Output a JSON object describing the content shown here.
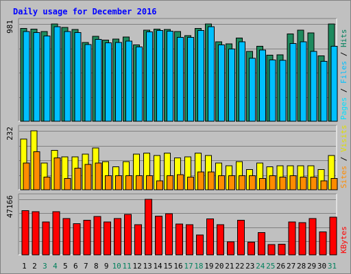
{
  "chart_data": {
    "type": "bar",
    "title": "Daily usage for December 2016",
    "categories": [
      "1",
      "2",
      "3",
      "4",
      "5",
      "6",
      "7",
      "8",
      "9",
      "10",
      "11",
      "12",
      "13",
      "14",
      "15",
      "16",
      "17",
      "18",
      "19",
      "20",
      "21",
      "22",
      "23",
      "24",
      "25",
      "26",
      "27",
      "28",
      "29",
      "30",
      "31"
    ],
    "weekend_days": [
      "3",
      "4",
      "10",
      "11",
      "17",
      "18",
      "24",
      "25",
      "31"
    ],
    "panels": [
      {
        "id": "hits-files-pages",
        "max_label": "981",
        "ymax": 981,
        "series": [
          {
            "name": "Hits",
            "color": "#1e8a5e",
            "values": [
              935,
              930,
              905,
              981,
              945,
              925,
              795,
              855,
              820,
              830,
              850,
              770,
              920,
              930,
              925,
              905,
              865,
              935,
              981,
              800,
              780,
              840,
              705,
              755,
              665,
              670,
              880,
              920,
              890,
              660,
              981
            ]
          },
          {
            "name": "Files",
            "color": "#00c0ff",
            "values": [
              905,
              895,
              860,
              955,
              905,
              895,
              775,
              825,
              790,
              795,
              810,
              750,
              900,
              915,
              910,
              845,
              845,
              915,
              955,
              770,
              730,
              800,
              635,
              720,
              620,
              615,
              785,
              800,
              705,
              605,
              755
            ]
          },
          {
            "name": "Pages",
            "color": "#00e0ff",
            "values": [
              0,
              0,
              0,
              0,
              0,
              0,
              0,
              0,
              0,
              0,
              0,
              0,
              0,
              0,
              0,
              0,
              0,
              0,
              0,
              0,
              0,
              0,
              0,
              0,
              0,
              0,
              0,
              0,
              0,
              0,
              0
            ]
          }
        ]
      },
      {
        "id": "visits-sites",
        "max_label": "232",
        "ymax": 232,
        "series": [
          {
            "name": "Visits",
            "color": "#ffff00",
            "values": [
              200,
              232,
              105,
              155,
              130,
              130,
              140,
              165,
              110,
              90,
              110,
              140,
              145,
              135,
              145,
              125,
              130,
              145,
              135,
              105,
              95,
              110,
              80,
              105,
              90,
              95,
              95,
              95,
              95,
              80,
              135
            ]
          },
          {
            "name": "Sites",
            "color": "#ff8c00",
            "values": [
              105,
              150,
              50,
              125,
              45,
              85,
              100,
              105,
              55,
              55,
              55,
              55,
              55,
              35,
              55,
              60,
              50,
              70,
              70,
              55,
              55,
              55,
              55,
              45,
              55,
              50,
              55,
              50,
              50,
              35,
              45
            ]
          }
        ]
      },
      {
        "id": "kbytes",
        "max_label": "47166",
        "ymax": 47166,
        "series": [
          {
            "name": "KBytes",
            "color": "#ff0000",
            "values": [
              37500,
              36800,
              28000,
              36800,
              31000,
              26500,
              29500,
              32500,
              28000,
              31000,
              34500,
              25700,
              47166,
              33000,
              35000,
              26200,
              25600,
              16900,
              30500,
              25600,
              11200,
              29500,
              10800,
              18900,
              8700,
              8900,
              28000,
              27500,
              31000,
              19600,
              32000
            ]
          }
        ]
      }
    ]
  },
  "colors": {
    "title": "#0000ff",
    "weekday_label": "#000000",
    "weekend_label": "#00805c",
    "legend_separator": "#000000",
    "gridline": "#808080",
    "background": "#c0c0c0"
  },
  "legend_separator": "/"
}
